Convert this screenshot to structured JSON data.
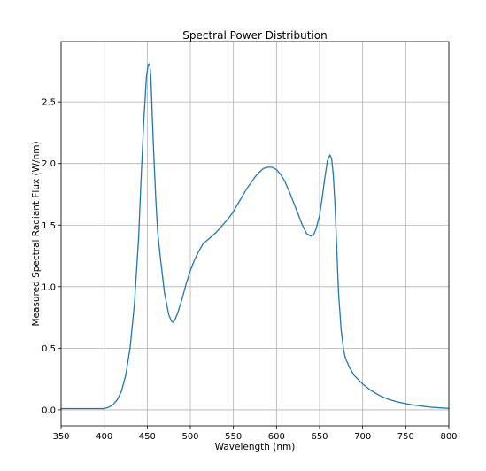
{
  "chart_data": {
    "type": "line",
    "title": "Spectral Power Distribution",
    "xlabel": "Wavelength (nm)",
    "ylabel": "Measured Spectral Radiant Flux (W/nm)",
    "xlim": [
      350,
      800
    ],
    "ylim": [
      -0.13,
      2.99
    ],
    "grid": true,
    "xticks": [
      350,
      400,
      450,
      500,
      550,
      600,
      650,
      700,
      750,
      800
    ],
    "xtick_labels": [
      "350",
      "400",
      "450",
      "500",
      "550",
      "600",
      "650",
      "700",
      "750",
      "800"
    ],
    "yticks": [
      0.0,
      0.5,
      1.0,
      1.5,
      2.0,
      2.5
    ],
    "ytick_labels": [
      "0.0",
      "0.5",
      "1.0",
      "1.5",
      "2.0",
      "2.5"
    ],
    "line_color": "#1f77b4",
    "series": [
      {
        "x": [
          350,
          370,
          390,
          400,
          405,
          410,
          415,
          420,
          425,
          430,
          435,
          440,
          443,
          446,
          449,
          451,
          452,
          453,
          454,
          455,
          456,
          458,
          460,
          462,
          465,
          470,
          475,
          478,
          480,
          482,
          485,
          490,
          495,
          500,
          505,
          510,
          515,
          520,
          525,
          530,
          535,
          540,
          545,
          550,
          555,
          560,
          565,
          570,
          575,
          580,
          585,
          590,
          595,
          600,
          605,
          610,
          615,
          620,
          625,
          630,
          635,
          640,
          643,
          646,
          650,
          653,
          656,
          659,
          662,
          664,
          666,
          668,
          670,
          672,
          675,
          678,
          680,
          685,
          690,
          700,
          710,
          720,
          730,
          740,
          750,
          760,
          770,
          780,
          790,
          800
        ],
        "y": [
          0.01,
          0.01,
          0.01,
          0.01,
          0.02,
          0.04,
          0.08,
          0.15,
          0.28,
          0.5,
          0.85,
          1.4,
          1.9,
          2.35,
          2.7,
          2.8,
          2.81,
          2.8,
          2.72,
          2.55,
          2.35,
          2.0,
          1.7,
          1.45,
          1.25,
          0.95,
          0.77,
          0.72,
          0.71,
          0.73,
          0.78,
          0.89,
          1.02,
          1.13,
          1.22,
          1.29,
          1.35,
          1.38,
          1.41,
          1.44,
          1.48,
          1.52,
          1.56,
          1.61,
          1.67,
          1.73,
          1.79,
          1.84,
          1.89,
          1.93,
          1.96,
          1.97,
          1.97,
          1.95,
          1.91,
          1.85,
          1.77,
          1.68,
          1.59,
          1.5,
          1.43,
          1.41,
          1.42,
          1.47,
          1.58,
          1.72,
          1.88,
          2.02,
          2.07,
          2.04,
          1.9,
          1.65,
          1.3,
          0.95,
          0.65,
          0.48,
          0.42,
          0.34,
          0.28,
          0.21,
          0.155,
          0.115,
          0.085,
          0.065,
          0.05,
          0.038,
          0.029,
          0.021,
          0.016,
          0.012
        ]
      }
    ]
  }
}
